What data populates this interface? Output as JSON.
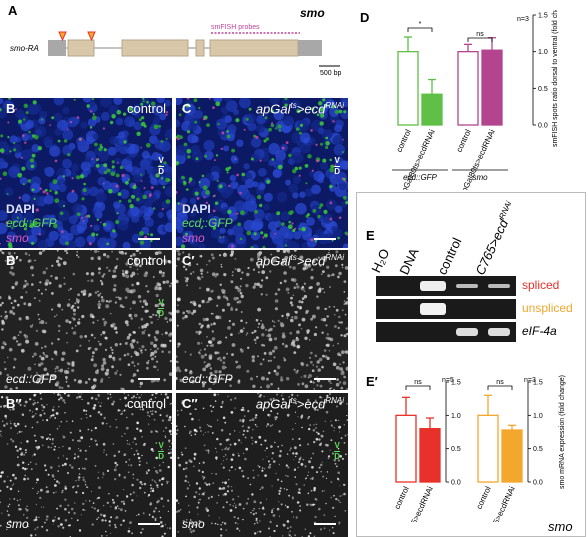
{
  "panel_a": {
    "label": "A",
    "gene_title": "smo",
    "transcript": "smo-RA",
    "probe_label": "smFISH probes",
    "scale_label": "500 bp"
  },
  "micrographs": {
    "b": {
      "label": "B",
      "condition": "control",
      "stains": [
        "DAPI",
        "ecd::GFP",
        "smo"
      ],
      "axis": [
        "V",
        "D"
      ]
    },
    "c": {
      "label": "C",
      "condition": "apGal",
      "condition_sup": "ts",
      "condition_mid": ">ecd",
      "condition_sup2": "RNAi",
      "stains": [
        "DAPI",
        "ecd::GFP",
        "smo"
      ],
      "axis": [
        "V",
        "D"
      ]
    },
    "b1": {
      "label": "B′",
      "condition": "control",
      "channel": "ecd::GFP",
      "axis": [
        "V",
        "D"
      ]
    },
    "c1": {
      "label": "C′",
      "condition": "apGal",
      "condition_sup": "ts",
      "condition_mid": ">ecd",
      "condition_sup2": "RNAi",
      "channel": "ecd::GFP"
    },
    "b2": {
      "label": "B′′",
      "condition": "control",
      "channel": "smo",
      "axis": [
        "V",
        "D"
      ]
    },
    "c2": {
      "label": "C′′",
      "condition": "apGal",
      "condition_sup": "ts",
      "condition_mid": ">ecd",
      "condition_sup2": "RNAi",
      "channel": "smo",
      "axis": [
        "V",
        "D"
      ]
    }
  },
  "panel_e": {
    "label": "E",
    "lanes": [
      "H₂O",
      "DNA",
      "control",
      "C765>ecd"
    ],
    "lane_sup": "RNAi",
    "rows": [
      {
        "label": "spliced",
        "color": "#e8312a"
      },
      {
        "label": "unspliced",
        "color": "#f3a72d"
      },
      {
        "label": "eIF-4a",
        "color": "#000000"
      }
    ],
    "footer": "smo"
  },
  "chart_data": [
    {
      "type": "bar",
      "panel": "D",
      "ylabel": "smFISH spots ratio dorsal to ventral (fold change)",
      "ylim": [
        0,
        1.5
      ],
      "yticks": [
        0.0,
        0.5,
        1.0,
        1.5
      ],
      "groups": [
        {
          "name": "ecd::GFP",
          "categories": [
            "control",
            "apGal80ts>ecdRNAi"
          ],
          "values": [
            1.0,
            0.42
          ],
          "errors": [
            0.2,
            0.2
          ],
          "colors": [
            "#5fbf46",
            "#5fbf46"
          ],
          "filled": [
            false,
            true
          ],
          "significance": "*"
        },
        {
          "name": "smo",
          "categories": [
            "control",
            "apGal80ts>ecdRNAi"
          ],
          "values": [
            1.0,
            1.02
          ],
          "errors": [
            0.1,
            0.17
          ],
          "colors": [
            "#b3458f",
            "#b3458f"
          ],
          "filled": [
            false,
            true
          ],
          "significance": "ns"
        }
      ],
      "n_label": "n=3"
    },
    {
      "type": "bar",
      "panel": "E′",
      "ylabel": "smo mRNA expression (fold change)",
      "ylim": [
        0,
        1.5
      ],
      "yticks": [
        0.0,
        0.5,
        1.0,
        1.5
      ],
      "groups": [
        {
          "name": "spliced",
          "categories": [
            "control",
            "C765>ecdRNAi"
          ],
          "values": [
            1.0,
            0.8
          ],
          "errors": [
            0.27,
            0.16
          ],
          "colors": [
            "#e8312a",
            "#e8312a"
          ],
          "filled": [
            false,
            true
          ],
          "significance": "ns",
          "n_label": "n=5"
        },
        {
          "name": "unspliced",
          "categories": [
            "control",
            "C765>ecdRNAi"
          ],
          "values": [
            1.0,
            0.78
          ],
          "errors": [
            0.3,
            0.07
          ],
          "colors": [
            "#f3a72d",
            "#f3a72d"
          ],
          "filled": [
            false,
            true
          ],
          "significance": "ns",
          "n_label": "n=3"
        }
      ]
    }
  ]
}
